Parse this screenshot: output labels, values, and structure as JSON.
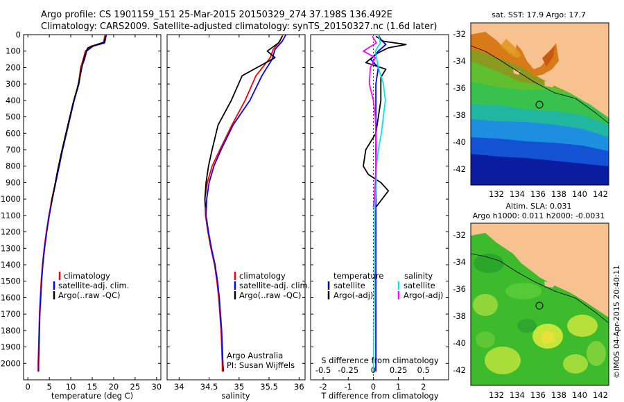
{
  "header": {
    "title_line1": "Argo profile: CS 1901159_151 25-Mar-2015 20150329_274 37.198S 136.492E",
    "title_line2": "Climatology: CARS2009. Satellite-adjusted climatology: synTS_20150327.nc (1.6d later)"
  },
  "colors": {
    "climatology": "#ff0000",
    "satellite": "#0000ff",
    "argo": "#000000",
    "argo_adj_s": "#ff00ff",
    "satellite_s": "#00e5ee",
    "land": "#f8c190"
  },
  "chart_data": [
    {
      "id": "temperature",
      "type": "line",
      "xlabel": "temperature (deg C)",
      "ylabel": "",
      "xlim": [
        -1,
        31
      ],
      "ylim": [
        2100,
        0
      ],
      "xticks": [
        0,
        5,
        10,
        15,
        20,
        25,
        30
      ],
      "yticks": [
        0,
        100,
        200,
        300,
        400,
        500,
        600,
        700,
        800,
        900,
        1000,
        1100,
        1200,
        1300,
        1400,
        1500,
        1600,
        1700,
        1800,
        1900,
        2000
      ],
      "legend": [
        "climatology",
        "satellite-adj. clim.",
        "Argo(..raw -QC)"
      ],
      "series": [
        {
          "name": "climatology",
          "color": "#ff0000",
          "points": [
            [
              18.0,
              0
            ],
            [
              17.6,
              50
            ],
            [
              14.7,
              70
            ],
            [
              13.4,
              100
            ],
            [
              12.9,
              150
            ],
            [
              12.3,
              200
            ],
            [
              11.8,
              300
            ],
            [
              10.7,
              400
            ],
            [
              9.8,
              500
            ],
            [
              8.9,
              600
            ],
            [
              8.0,
              700
            ],
            [
              7.2,
              800
            ],
            [
              6.4,
              900
            ],
            [
              5.6,
              1000
            ],
            [
              4.9,
              1100
            ],
            [
              4.3,
              1200
            ],
            [
              3.8,
              1300
            ],
            [
              3.4,
              1400
            ],
            [
              3.1,
              1500
            ],
            [
              2.9,
              1600
            ],
            [
              2.7,
              1700
            ],
            [
              2.6,
              1800
            ],
            [
              2.5,
              1900
            ],
            [
              2.4,
              2000
            ],
            [
              2.4,
              2050
            ]
          ]
        },
        {
          "name": "satellite-adj. clim.",
          "color": "#0000ff",
          "points": [
            [
              18.3,
              0
            ],
            [
              17.9,
              50
            ],
            [
              15.2,
              70
            ],
            [
              13.7,
              100
            ],
            [
              13.2,
              150
            ],
            [
              12.5,
              200
            ],
            [
              11.9,
              300
            ],
            [
              10.8,
              400
            ],
            [
              9.9,
              500
            ],
            [
              9.0,
              600
            ],
            [
              8.1,
              700
            ],
            [
              7.3,
              800
            ],
            [
              6.5,
              900
            ],
            [
              5.7,
              1000
            ],
            [
              5.0,
              1100
            ],
            [
              4.4,
              1200
            ],
            [
              3.9,
              1300
            ],
            [
              3.5,
              1400
            ],
            [
              3.2,
              1500
            ],
            [
              3.0,
              1600
            ],
            [
              2.8,
              1700
            ],
            [
              2.7,
              1800
            ],
            [
              2.6,
              1900
            ],
            [
              2.5,
              2000
            ],
            [
              2.5,
              2050
            ]
          ]
        },
        {
          "name": "Argo(..raw -QC)",
          "color": "#000000",
          "points": [
            [
              18.1,
              10
            ],
            [
              17.8,
              45
            ],
            [
              16.1,
              60
            ],
            [
              14.0,
              80
            ],
            [
              13.5,
              110
            ],
            [
              12.9,
              160
            ],
            [
              12.2,
              250
            ],
            [
              11.5,
              330
            ],
            [
              10.5,
              420
            ],
            [
              9.6,
              520
            ],
            [
              8.7,
              620
            ],
            [
              7.8,
              720
            ],
            [
              6.9,
              830
            ],
            [
              6.2,
              930
            ],
            [
              5.4,
              1030
            ]
          ]
        }
      ]
    },
    {
      "id": "salinity",
      "type": "line",
      "xlabel": "salinity",
      "ylabel": "",
      "xlim": [
        33.8,
        36.1
      ],
      "ylim": [
        2100,
        0
      ],
      "xticks": [
        34,
        34.5,
        35,
        35.5,
        36
      ],
      "legend": [
        "climatology",
        "satellite-adj. clim.",
        "Argo(..raw -QC)"
      ],
      "annotation": [
        "Argo Australia",
        "PI: Susan Wijffels"
      ],
      "series": [
        {
          "name": "climatology",
          "color": "#ff0000",
          "points": [
            [
              35.73,
              0
            ],
            [
              35.68,
              40
            ],
            [
              35.57,
              90
            ],
            [
              35.52,
              140
            ],
            [
              35.28,
              250
            ],
            [
              35.1,
              400
            ],
            [
              34.88,
              550
            ],
            [
              34.68,
              700
            ],
            [
              34.55,
              800
            ],
            [
              34.47,
              900
            ],
            [
              34.43,
              1000
            ],
            [
              34.44,
              1100
            ],
            [
              34.48,
              1200
            ],
            [
              34.53,
              1300
            ],
            [
              34.59,
              1400
            ],
            [
              34.63,
              1500
            ],
            [
              34.66,
              1600
            ],
            [
              34.68,
              1700
            ],
            [
              34.7,
              1800
            ],
            [
              34.71,
              1900
            ],
            [
              34.72,
              2000
            ],
            [
              34.72,
              2050
            ]
          ]
        },
        {
          "name": "satellite-adj. clim.",
          "color": "#0000ff",
          "points": [
            [
              35.78,
              0
            ],
            [
              35.72,
              40
            ],
            [
              35.6,
              90
            ],
            [
              35.55,
              150
            ],
            [
              35.38,
              250
            ],
            [
              35.18,
              400
            ],
            [
              34.9,
              550
            ],
            [
              34.7,
              700
            ],
            [
              34.58,
              800
            ],
            [
              34.5,
              900
            ],
            [
              34.46,
              1000
            ],
            [
              34.45,
              1100
            ],
            [
              34.49,
              1200
            ],
            [
              34.54,
              1300
            ],
            [
              34.6,
              1400
            ],
            [
              34.64,
              1500
            ],
            [
              34.67,
              1600
            ],
            [
              34.69,
              1700
            ],
            [
              34.71,
              1800
            ],
            [
              34.72,
              1900
            ],
            [
              34.73,
              2000
            ],
            [
              34.74,
              2050
            ]
          ]
        },
        {
          "name": "Argo(..raw -QC)",
          "color": "#000000",
          "points": [
            [
              35.72,
              10
            ],
            [
              35.66,
              50
            ],
            [
              35.47,
              100
            ],
            [
              35.6,
              140
            ],
            [
              35.05,
              250
            ],
            [
              34.87,
              400
            ],
            [
              34.65,
              550
            ],
            [
              34.55,
              700
            ],
            [
              34.49,
              800
            ],
            [
              34.45,
              900
            ],
            [
              34.43,
              1000
            ],
            [
              34.44,
              1050
            ]
          ]
        }
      ]
    },
    {
      "id": "difference",
      "type": "line",
      "xlabel": "T difference from climatology",
      "xlabel_top": "S difference from climatology",
      "xlim": [
        -2.5,
        3
      ],
      "ylim": [
        2100,
        0
      ],
      "xticks_T": [
        -2,
        -1,
        0,
        1,
        2
      ],
      "xticks_S": [
        -0.5,
        -0.25,
        0,
        0.25,
        0.5
      ],
      "legend": {
        "temperature_heading": "temperature",
        "temperature": [
          "satellite",
          "Argo(-adj)"
        ],
        "salinity_heading": "salinity",
        "salinity": [
          "satellite",
          "Argo(-adj)"
        ]
      },
      "series": [
        {
          "name": "T satellite",
          "color": "#0000ff",
          "points": [
            [
              0.2,
              0
            ],
            [
              0.3,
              30
            ],
            [
              0.5,
              60
            ],
            [
              0.2,
              100
            ],
            [
              -0.1,
              150
            ],
            [
              0.2,
              200
            ],
            [
              0.1,
              300
            ],
            [
              0.1,
              400
            ],
            [
              0.1,
              600
            ],
            [
              0.1,
              800
            ],
            [
              0.1,
              1000
            ],
            [
              0.1,
              1200
            ],
            [
              0.1,
              1600
            ],
            [
              0.1,
              2050
            ]
          ]
        },
        {
          "name": "T Argo(-adj)",
          "color": "#000000",
          "points": [
            [
              0.1,
              10
            ],
            [
              0.4,
              40
            ],
            [
              1.3,
              60
            ],
            [
              0.6,
              80
            ],
            [
              0.2,
              110
            ],
            [
              -0.3,
              170
            ],
            [
              0.5,
              210
            ],
            [
              0.3,
              260
            ],
            [
              0.3,
              400
            ],
            [
              0.1,
              600
            ],
            [
              -0.3,
              700
            ],
            [
              -0.4,
              800
            ],
            [
              -0.2,
              850
            ],
            [
              0.3,
              900
            ],
            [
              0.6,
              950
            ],
            [
              0.1,
              1050
            ]
          ]
        },
        {
          "name": "S satellite",
          "color": "#00e5ee",
          "points": [
            [
              0.05,
              0
            ],
            [
              0.07,
              50
            ],
            [
              0.02,
              100
            ],
            [
              0.05,
              200
            ],
            [
              0.1,
              300
            ],
            [
              0.12,
              400
            ],
            [
              0.1,
              500
            ],
            [
              0.08,
              600
            ],
            [
              0.05,
              700
            ],
            [
              0.03,
              800
            ],
            [
              0.03,
              900
            ],
            [
              0.02,
              1000
            ],
            [
              0.01,
              1100
            ],
            [
              0.01,
              1200
            ],
            [
              0.01,
              1600
            ],
            [
              0.0,
              2050
            ]
          ]
        },
        {
          "name": "S Argo(-adj)",
          "color": "#ff00ff",
          "points": [
            [
              -0.01,
              10
            ],
            [
              0.03,
              50
            ],
            [
              -0.1,
              100
            ],
            [
              0.02,
              140
            ],
            [
              -0.03,
              200
            ],
            [
              -0.04,
              300
            ],
            [
              0.0,
              400
            ],
            [
              0.02,
              500
            ],
            [
              0.03,
              700
            ],
            [
              0.02,
              900
            ],
            [
              0.01,
              1000
            ],
            [
              0.0,
              1050
            ]
          ]
        }
      ]
    }
  ],
  "maps": {
    "sst": {
      "title": "sat. SST: 17.9  Argo: 17.7",
      "yticks": [
        "-32",
        "-34",
        "-36",
        "-38",
        "-40",
        "-42"
      ],
      "xticks": [
        "132",
        "134",
        "136",
        "138",
        "140",
        "142"
      ]
    },
    "sla": {
      "title_line1": "Altim. SLA: 0.031",
      "title_line2": "Argo h1000: 0.011  h2000: -0.0031",
      "yticks": [
        "-32",
        "-34",
        "-36",
        "-38",
        "-40",
        "-42"
      ],
      "xticks": [
        "132",
        "134",
        "136",
        "138",
        "140",
        "142"
      ]
    }
  },
  "footer": {
    "credit": "©IMOS 04-Apr-2015 20:40:11"
  }
}
